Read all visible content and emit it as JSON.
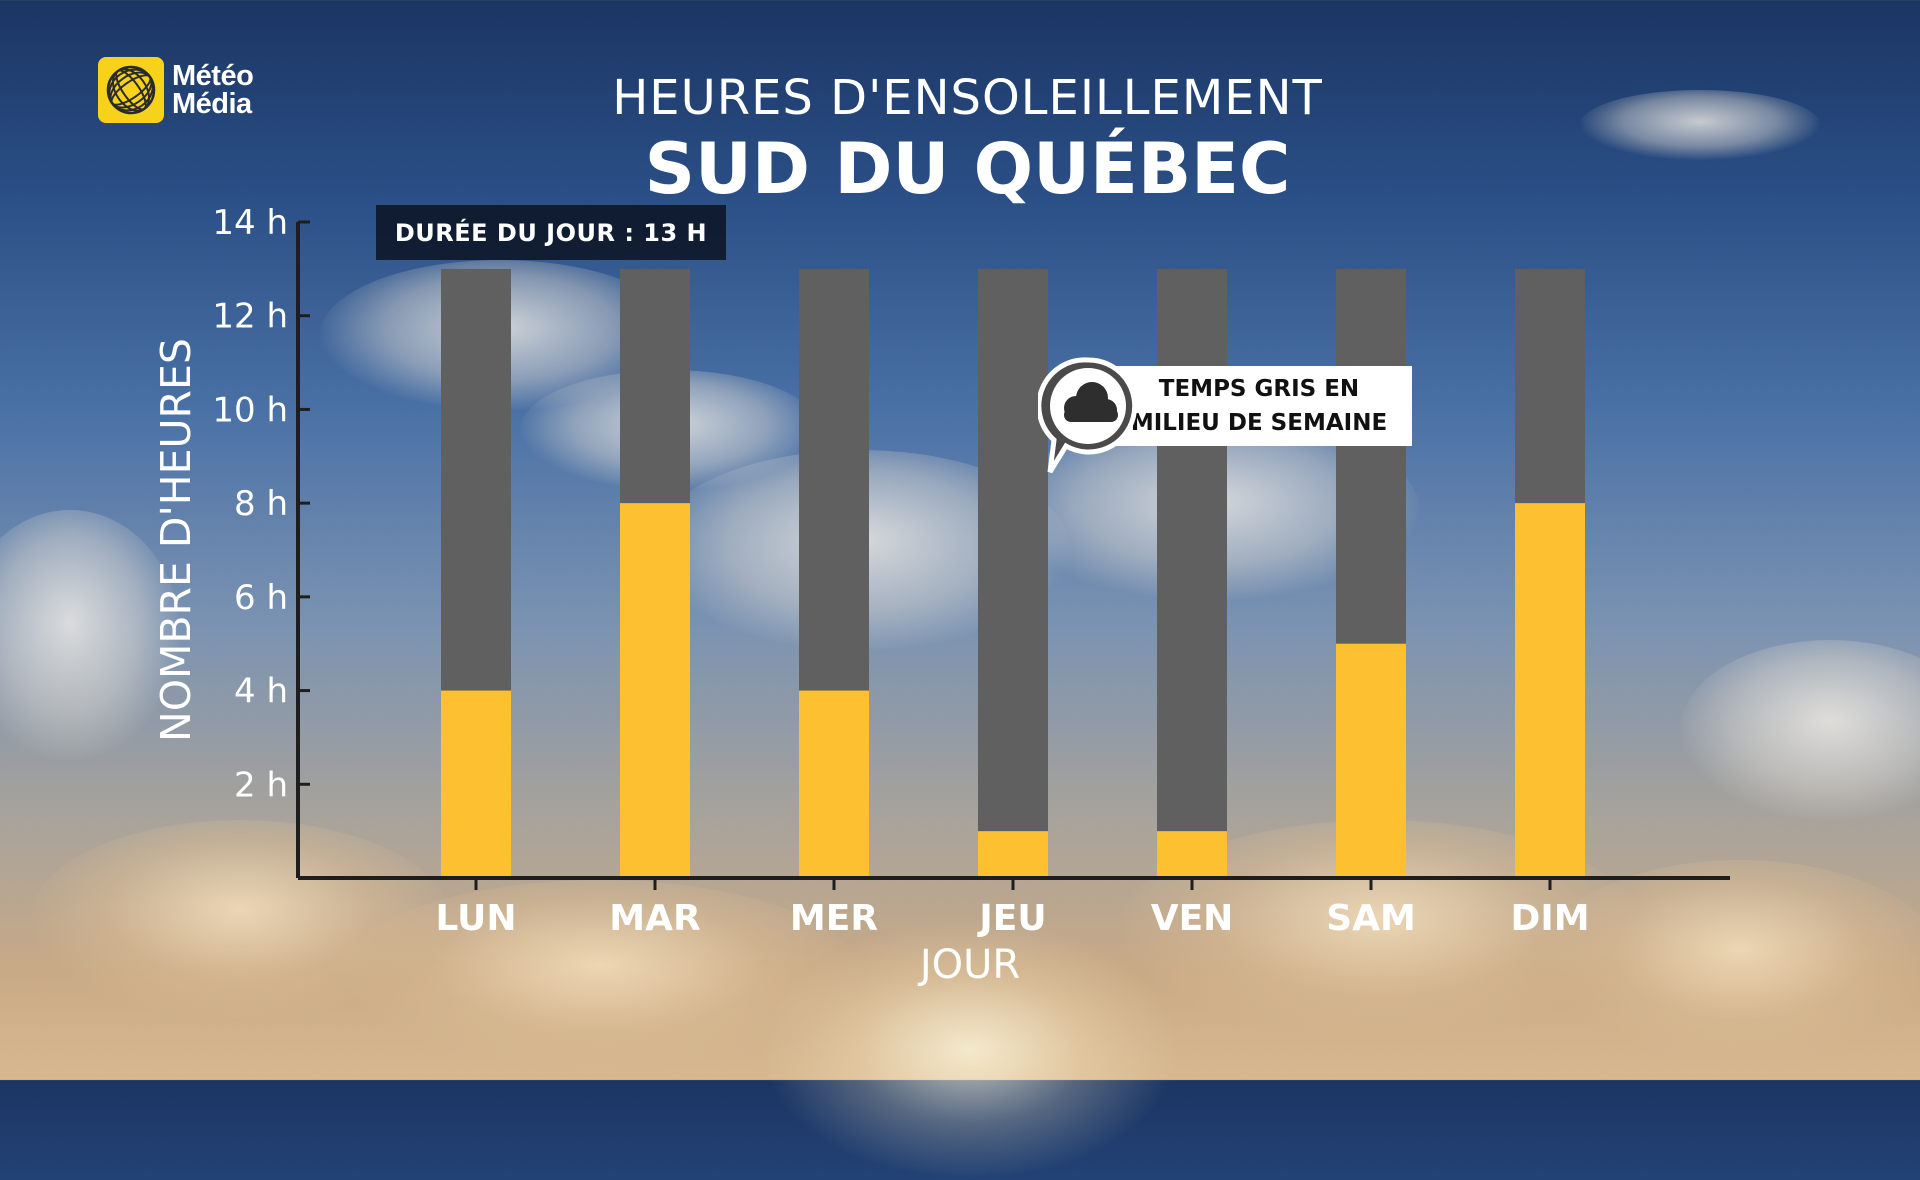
{
  "brand": {
    "logo_line1": "Météo",
    "logo_line2": "Média"
  },
  "heading": {
    "line1": "HEURES D'ENSOLEILLEMENT",
    "line2": "SUD DU QUÉBEC"
  },
  "day_length_label": "DURÉE DU JOUR : 13 H",
  "callout": {
    "text": "TEMPS GRIS EN\nMILIEU DE SEMAINE",
    "icon": "cloud-icon"
  },
  "colors": {
    "sun": "#fcc030",
    "gray": "#606060",
    "axis": "#1e1e1e"
  },
  "chart_data": {
    "type": "bar",
    "categories": [
      "LUN",
      "MAR",
      "MER",
      "JEU",
      "VEN",
      "SAM",
      "DIM"
    ],
    "series": [
      {
        "values": [
          4,
          8,
          4,
          1,
          1,
          5,
          8
        ]
      }
    ],
    "day_length": 13,
    "xlabel": "JOUR",
    "ylabel": "NOMBRE D'HEURES",
    "ylim": [
      0,
      14
    ],
    "yticks": [
      2,
      4,
      6,
      8,
      10,
      12,
      14
    ],
    "ytick_labels": [
      "2 h",
      "4 h",
      "6 h",
      "8 h",
      "10 h",
      "12 h",
      "14 h"
    ],
    "grid": false
  }
}
